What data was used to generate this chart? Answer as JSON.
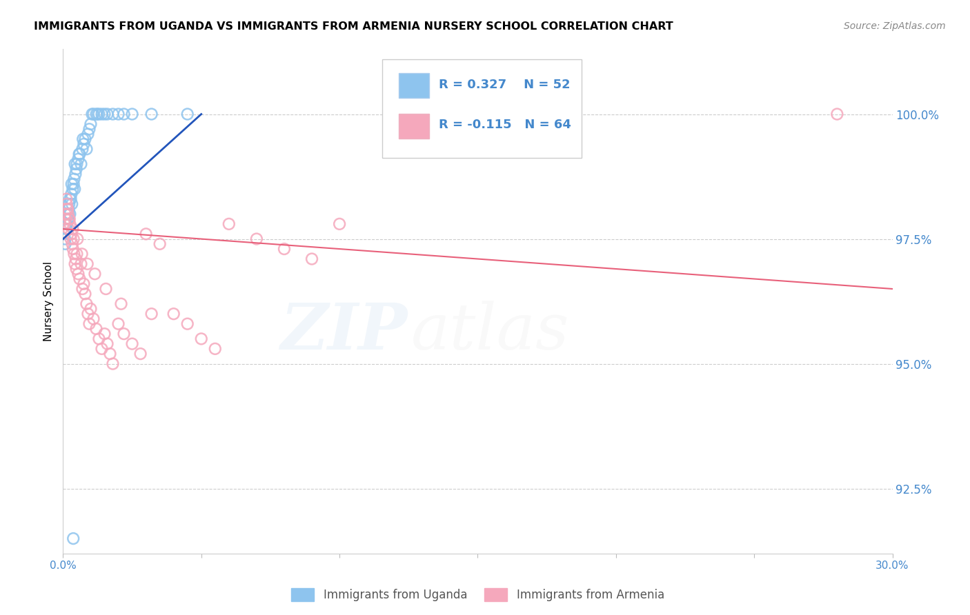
{
  "title": "IMMIGRANTS FROM UGANDA VS IMMIGRANTS FROM ARMENIA NURSERY SCHOOL CORRELATION CHART",
  "source": "Source: ZipAtlas.com",
  "ylabel": "Nursery School",
  "right_yticks": [
    100.0,
    97.5,
    95.0,
    92.5
  ],
  "right_yticklabels": [
    "100.0%",
    "97.5%",
    "95.0%",
    "92.5%"
  ],
  "xlim": [
    0.0,
    30.0
  ],
  "ylim": [
    91.2,
    101.3
  ],
  "legend_r1": "R = 0.327",
  "legend_n1": "N = 52",
  "legend_r2": "R = -0.115",
  "legend_n2": "N = 64",
  "legend_label1": "Immigrants from Uganda",
  "legend_label2": "Immigrants from Armenia",
  "color_uganda": "#8EC4EE",
  "color_armenia": "#F5A8BC",
  "color_line_uganda": "#2255BB",
  "color_line_armenia": "#E8607A",
  "color_axis_text": "#4488CC",
  "uganda_x": [
    0.05,
    0.07,
    0.1,
    0.12,
    0.15,
    0.18,
    0.2,
    0.22,
    0.25,
    0.28,
    0.3,
    0.32,
    0.35,
    0.38,
    0.4,
    0.42,
    0.45,
    0.48,
    0.5,
    0.55,
    0.6,
    0.65,
    0.7,
    0.75,
    0.8,
    0.85,
    0.9,
    1.0,
    1.1,
    1.2,
    1.3,
    1.4,
    1.5,
    1.6,
    1.8,
    2.0,
    2.2,
    2.5,
    0.08,
    0.14,
    0.19,
    0.24,
    0.31,
    0.43,
    0.58,
    0.72,
    0.95,
    1.05,
    1.25,
    3.2,
    4.5,
    0.37
  ],
  "uganda_y": [
    97.6,
    97.5,
    97.8,
    97.7,
    98.0,
    97.9,
    98.1,
    98.2,
    98.0,
    98.3,
    98.4,
    98.2,
    98.5,
    98.6,
    98.7,
    98.5,
    98.8,
    98.9,
    99.0,
    99.1,
    99.2,
    99.0,
    99.3,
    99.4,
    99.5,
    99.3,
    99.6,
    99.8,
    100.0,
    100.0,
    100.0,
    100.0,
    100.0,
    100.0,
    100.0,
    100.0,
    100.0,
    100.0,
    97.4,
    97.8,
    98.0,
    98.3,
    98.6,
    99.0,
    99.2,
    99.5,
    99.7,
    100.0,
    100.0,
    100.0,
    100.0,
    91.5
  ],
  "armenia_x": [
    0.05,
    0.08,
    0.1,
    0.13,
    0.15,
    0.18,
    0.2,
    0.22,
    0.25,
    0.28,
    0.3,
    0.33,
    0.36,
    0.38,
    0.4,
    0.43,
    0.46,
    0.48,
    0.5,
    0.55,
    0.6,
    0.65,
    0.7,
    0.75,
    0.8,
    0.85,
    0.9,
    0.95,
    1.0,
    1.1,
    1.2,
    1.3,
    1.4,
    1.5,
    1.6,
    1.7,
    1.8,
    2.0,
    2.2,
    2.5,
    2.8,
    3.0,
    3.5,
    4.0,
    4.5,
    5.0,
    5.5,
    6.0,
    7.0,
    8.0,
    9.0,
    10.0,
    0.12,
    0.17,
    0.23,
    0.35,
    0.52,
    0.68,
    0.88,
    1.15,
    1.55,
    2.1,
    3.2,
    28.0
  ],
  "armenia_y": [
    97.8,
    98.0,
    97.9,
    98.2,
    98.1,
    98.0,
    97.7,
    97.9,
    97.8,
    97.5,
    97.6,
    97.4,
    97.3,
    97.5,
    97.2,
    97.0,
    97.1,
    96.9,
    97.2,
    96.8,
    96.7,
    97.0,
    96.5,
    96.6,
    96.4,
    96.2,
    96.0,
    95.8,
    96.1,
    95.9,
    95.7,
    95.5,
    95.3,
    95.6,
    95.4,
    95.2,
    95.0,
    95.8,
    95.6,
    95.4,
    95.2,
    97.6,
    97.4,
    96.0,
    95.8,
    95.5,
    95.3,
    97.8,
    97.5,
    97.3,
    97.1,
    97.8,
    98.3,
    98.1,
    97.9,
    97.7,
    97.5,
    97.2,
    97.0,
    96.8,
    96.5,
    96.2,
    96.0,
    100.0
  ],
  "line_uganda_x0": 0.0,
  "line_uganda_x1": 5.0,
  "line_uganda_y0": 97.5,
  "line_uganda_y1": 100.0,
  "line_armenia_x0": 0.0,
  "line_armenia_x1": 30.0,
  "line_armenia_y0": 97.7,
  "line_armenia_y1": 96.5
}
